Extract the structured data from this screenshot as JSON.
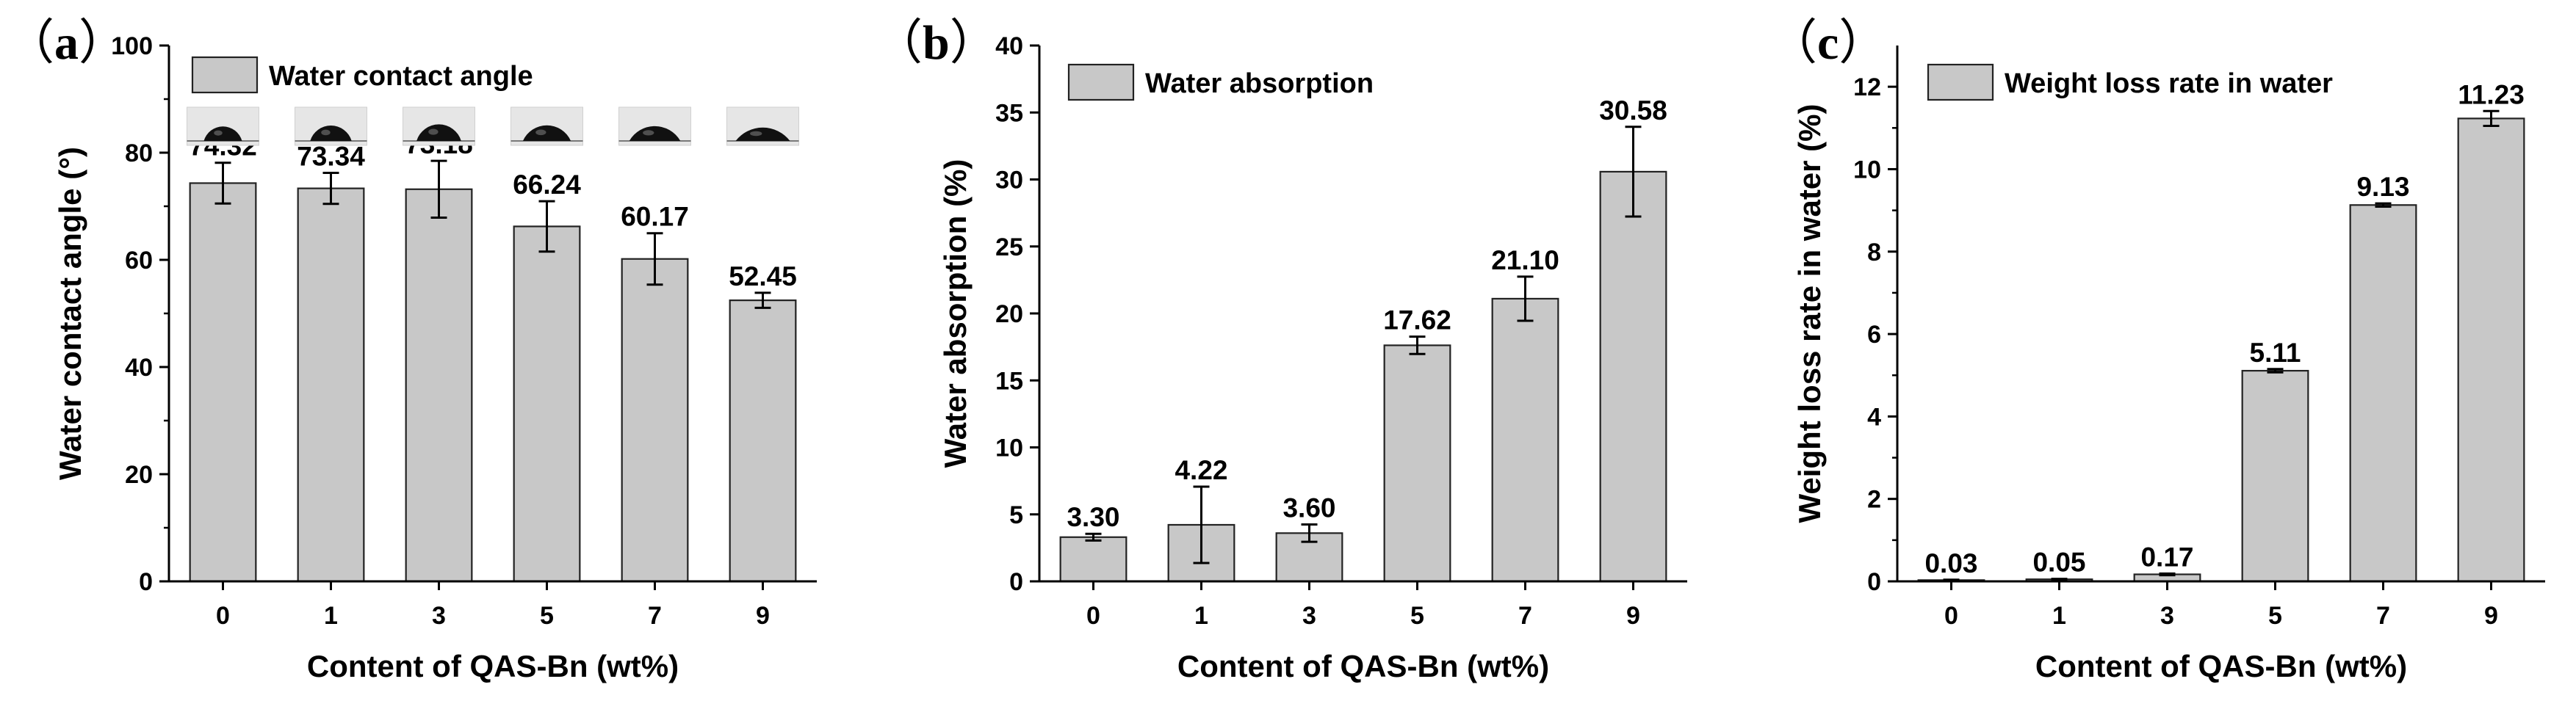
{
  "colors": {
    "bar_fill": "#c8c8c8",
    "bar_stroke": "#222222",
    "axis": "#000000"
  },
  "chart_data": [
    {
      "panel": "a",
      "panel_label": {
        "open": "（",
        "letter": "a",
        "close": "）"
      },
      "type": "bar",
      "title": "",
      "xlabel": "Content of QAS-Bn (wt%)",
      "ylabel": "Water contact angle (°)",
      "categories": [
        "0",
        "1",
        "3",
        "5",
        "7",
        "9"
      ],
      "values": [
        74.32,
        73.34,
        73.18,
        66.24,
        60.17,
        52.45
      ],
      "errors": [
        3.8,
        2.9,
        5.3,
        4.7,
        4.8,
        1.4
      ],
      "value_labels": [
        "74.32",
        "73.34",
        "73.18",
        "66.24",
        "60.17",
        "52.45"
      ],
      "ylim": [
        0,
        100
      ],
      "major_ticks": [
        0,
        20,
        40,
        60,
        80,
        100
      ],
      "minor_ticks": [
        10,
        30,
        50,
        70,
        90
      ],
      "tick_labels": [
        "0",
        "20",
        "40",
        "60",
        "80",
        "100"
      ],
      "legend": "Water contact angle",
      "legend_position": "top-left",
      "droplet_images": true
    },
    {
      "panel": "b",
      "panel_label": {
        "open": "（",
        "letter": "b",
        "close": "）"
      },
      "type": "bar",
      "title": "",
      "xlabel": "Content of QAS-Bn (wt%)",
      "ylabel": "Water absorption (%)",
      "categories": [
        "0",
        "1",
        "3",
        "5",
        "7",
        "9"
      ],
      "values": [
        3.3,
        4.22,
        3.6,
        17.62,
        21.1,
        30.58
      ],
      "errors": [
        0.25,
        2.85,
        0.65,
        0.65,
        1.65,
        3.35
      ],
      "value_labels": [
        "3.30",
        "4.22",
        "3.60",
        "17.62",
        "21.10",
        "30.58"
      ],
      "ylim": [
        0,
        40
      ],
      "major_ticks": [
        0,
        5,
        10,
        15,
        20,
        25,
        30,
        35,
        40
      ],
      "minor_ticks": [],
      "tick_labels": [
        "0",
        "5",
        "10",
        "15",
        "20",
        "25",
        "30",
        "35",
        "40"
      ],
      "legend": "Water absorption",
      "legend_position": "top-left",
      "droplet_images": false
    },
    {
      "panel": "c",
      "panel_label": {
        "open": "（",
        "letter": "c",
        "close": "）"
      },
      "type": "bar",
      "title": "",
      "xlabel": "Content of QAS-Bn (wt%)",
      "ylabel": "Weight loss rate in water (%)",
      "categories": [
        "0",
        "1",
        "3",
        "5",
        "7",
        "9"
      ],
      "values": [
        0.03,
        0.05,
        0.17,
        5.11,
        9.13,
        11.23
      ],
      "errors": [
        0.01,
        0.01,
        0.02,
        0.04,
        0.04,
        0.18
      ],
      "value_labels": [
        "0.03",
        "0.05",
        "0.17",
        "5.11",
        "9.13",
        "11.23"
      ],
      "ylim": [
        0,
        13
      ],
      "major_ticks": [
        0,
        2,
        4,
        6,
        8,
        10,
        12
      ],
      "minor_ticks": [
        1,
        3,
        5,
        7,
        9,
        11
      ],
      "tick_labels": [
        "0",
        "2",
        "4",
        "6",
        "8",
        "10",
        "12"
      ],
      "legend": "Weight loss rate in water",
      "legend_position": "top-left",
      "droplet_images": false
    }
  ]
}
